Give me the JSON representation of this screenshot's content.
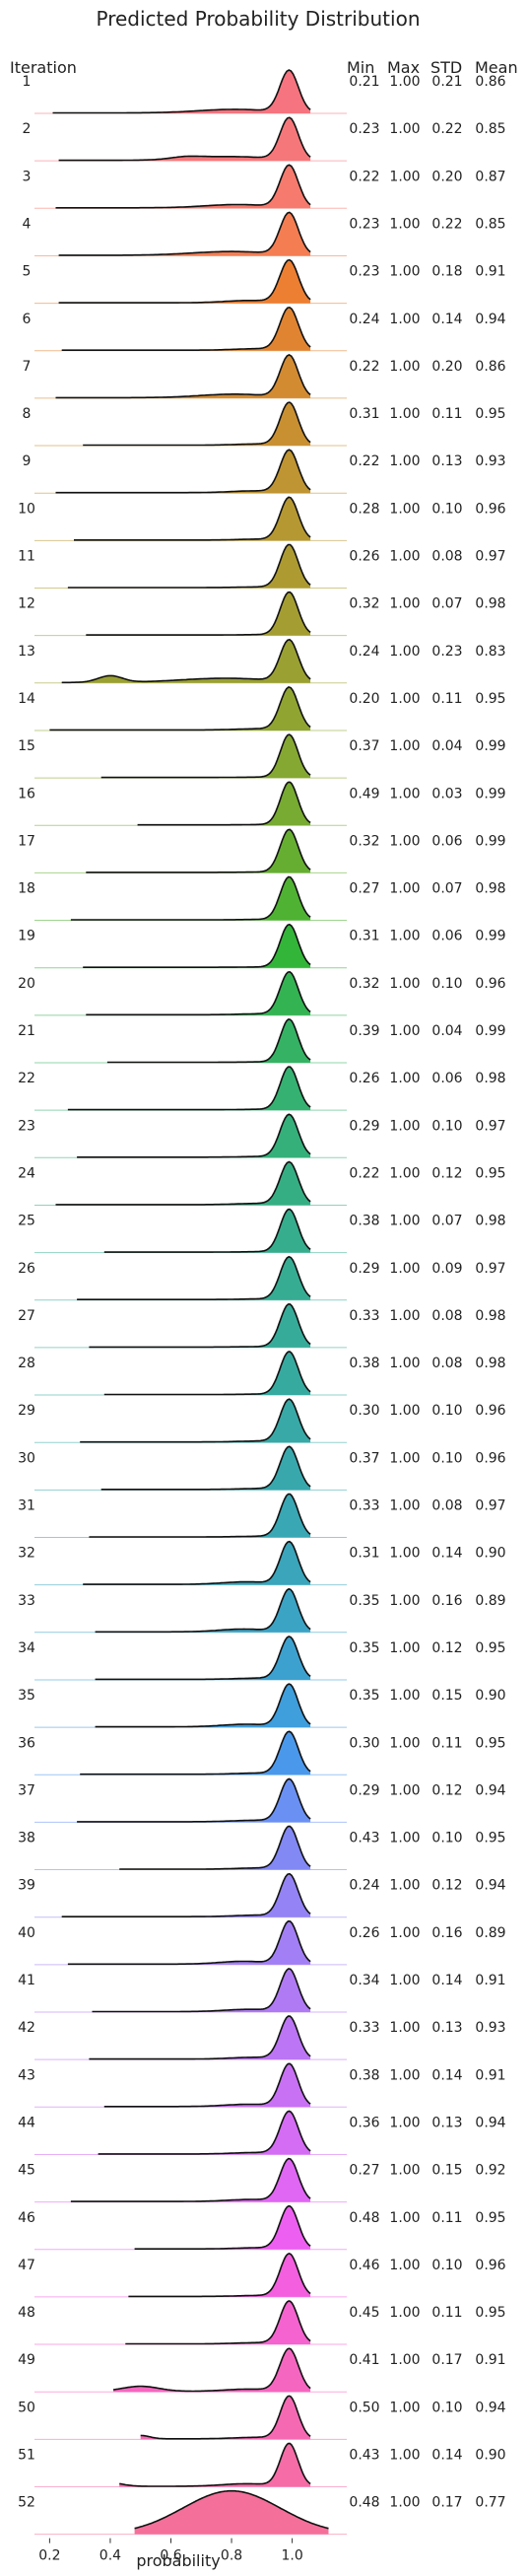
{
  "chart_data": {
    "type": "ridgeline",
    "title": "Predicted Probability Distribution",
    "xlabel": "probability",
    "row_header": "Iteration",
    "stat_headers": [
      "Min",
      "Max",
      "STD",
      "Mean"
    ],
    "x_ticks": [
      0.2,
      0.4,
      0.6,
      0.8,
      1.0
    ],
    "x_tick_labels": [
      "0.2",
      "0.4",
      "0.6",
      "0.8",
      "1.0"
    ],
    "xlim": [
      0.15,
      1.18
    ],
    "colormap": "hue cycle (red → orange → olive → green → teal → blue → purple → magenta → pink)",
    "rows": [
      {
        "iteration": "1",
        "min": "0.21",
        "max": "1.00",
        "std": "0.21",
        "mean": "0.86",
        "color": "#f6747f"
      },
      {
        "iteration": "2",
        "min": "0.23",
        "max": "1.00",
        "std": "0.22",
        "mean": "0.85",
        "color": "#f6777a"
      },
      {
        "iteration": "3",
        "min": "0.22",
        "max": "1.00",
        "std": "0.20",
        "mean": "0.87",
        "color": "#f67a6d"
      },
      {
        "iteration": "4",
        "min": "0.23",
        "max": "1.00",
        "std": "0.22",
        "mean": "0.85",
        "color": "#f57d52"
      },
      {
        "iteration": "5",
        "min": "0.23",
        "max": "1.00",
        "std": "0.18",
        "mean": "0.91",
        "color": "#ec7f32"
      },
      {
        "iteration": "6",
        "min": "0.24",
        "max": "1.00",
        "std": "0.14",
        "mean": "0.94",
        "color": "#e08432"
      },
      {
        "iteration": "7",
        "min": "0.22",
        "max": "1.00",
        "std": "0.20",
        "mean": "0.86",
        "color": "#d38b32"
      },
      {
        "iteration": "8",
        "min": "0.31",
        "max": "1.00",
        "std": "0.11",
        "mean": "0.95",
        "color": "#c99032"
      },
      {
        "iteration": "9",
        "min": "0.22",
        "max": "1.00",
        "std": "0.13",
        "mean": "0.93",
        "color": "#bf9432"
      },
      {
        "iteration": "10",
        "min": "0.28",
        "max": "1.00",
        "std": "0.10",
        "mean": "0.96",
        "color": "#b69832"
      },
      {
        "iteration": "11",
        "min": "0.26",
        "max": "1.00",
        "std": "0.08",
        "mean": "0.97",
        "color": "#ad9b32"
      },
      {
        "iteration": "12",
        "min": "0.32",
        "max": "1.00",
        "std": "0.07",
        "mean": "0.98",
        "color": "#a49e32"
      },
      {
        "iteration": "13",
        "min": "0.24",
        "max": "1.00",
        "std": "0.23",
        "mean": "0.83",
        "color": "#9aa132"
      },
      {
        "iteration": "14",
        "min": "0.20",
        "max": "1.00",
        "std": "0.11",
        "mean": "0.95",
        "color": "#90a432"
      },
      {
        "iteration": "15",
        "min": "0.37",
        "max": "1.00",
        "std": "0.04",
        "mean": "0.99",
        "color": "#85a832"
      },
      {
        "iteration": "16",
        "min": "0.49",
        "max": "1.00",
        "std": "0.03",
        "mean": "0.99",
        "color": "#77ab32"
      },
      {
        "iteration": "17",
        "min": "0.32",
        "max": "1.00",
        "std": "0.06",
        "mean": "0.99",
        "color": "#66ae32"
      },
      {
        "iteration": "18",
        "min": "0.27",
        "max": "1.00",
        "std": "0.07",
        "mean": "0.98",
        "color": "#4fb232"
      },
      {
        "iteration": "19",
        "min": "0.31",
        "max": "1.00",
        "std": "0.06",
        "mean": "0.99",
        "color": "#33b53a"
      },
      {
        "iteration": "20",
        "min": "0.32",
        "max": "1.00",
        "std": "0.10",
        "mean": "0.96",
        "color": "#34b353"
      },
      {
        "iteration": "21",
        "min": "0.39",
        "max": "1.00",
        "std": "0.04",
        "mean": "0.99",
        "color": "#35b264"
      },
      {
        "iteration": "22",
        "min": "0.26",
        "max": "1.00",
        "std": "0.06",
        "mean": "0.98",
        "color": "#35b171"
      },
      {
        "iteration": "23",
        "min": "0.29",
        "max": "1.00",
        "std": "0.10",
        "mean": "0.97",
        "color": "#35b07b"
      },
      {
        "iteration": "24",
        "min": "0.22",
        "max": "1.00",
        "std": "0.12",
        "mean": "0.95",
        "color": "#36ae84"
      },
      {
        "iteration": "25",
        "min": "0.38",
        "max": "1.00",
        "std": "0.07",
        "mean": "0.98",
        "color": "#36ad8c"
      },
      {
        "iteration": "26",
        "min": "0.29",
        "max": "1.00",
        "std": "0.09",
        "mean": "0.97",
        "color": "#36ac93"
      },
      {
        "iteration": "27",
        "min": "0.33",
        "max": "1.00",
        "std": "0.08",
        "mean": "0.98",
        "color": "#37ab99"
      },
      {
        "iteration": "28",
        "min": "0.38",
        "max": "1.00",
        "std": "0.08",
        "mean": "0.98",
        "color": "#37aaa0"
      },
      {
        "iteration": "29",
        "min": "0.30",
        "max": "1.00",
        "std": "0.10",
        "mean": "0.96",
        "color": "#38a9a6"
      },
      {
        "iteration": "30",
        "min": "0.37",
        "max": "1.00",
        "std": "0.10",
        "mean": "0.96",
        "color": "#38a8ad"
      },
      {
        "iteration": "31",
        "min": "0.33",
        "max": "1.00",
        "std": "0.08",
        "mean": "0.97",
        "color": "#39a7b4"
      },
      {
        "iteration": "32",
        "min": "0.31",
        "max": "1.00",
        "std": "0.14",
        "mean": "0.90",
        "color": "#3aa5bb"
      },
      {
        "iteration": "33",
        "min": "0.35",
        "max": "1.00",
        "std": "0.16",
        "mean": "0.89",
        "color": "#3ba3c4"
      },
      {
        "iteration": "34",
        "min": "0.35",
        "max": "1.00",
        "std": "0.12",
        "mean": "0.95",
        "color": "#3da1cf"
      },
      {
        "iteration": "35",
        "min": "0.35",
        "max": "1.00",
        "std": "0.15",
        "mean": "0.90",
        "color": "#3f9edc"
      },
      {
        "iteration": "36",
        "min": "0.30",
        "max": "1.00",
        "std": "0.11",
        "mean": "0.95",
        "color": "#4a98ec"
      },
      {
        "iteration": "37",
        "min": "0.29",
        "max": "1.00",
        "std": "0.12",
        "mean": "0.94",
        "color": "#6a90f4"
      },
      {
        "iteration": "38",
        "min": "0.43",
        "max": "1.00",
        "std": "0.10",
        "mean": "0.95",
        "color": "#8288f4"
      },
      {
        "iteration": "39",
        "min": "0.24",
        "max": "1.00",
        "std": "0.12",
        "mean": "0.94",
        "color": "#9483f4"
      },
      {
        "iteration": "40",
        "min": "0.26",
        "max": "1.00",
        "std": "0.16",
        "mean": "0.89",
        "color": "#a27ff4"
      },
      {
        "iteration": "41",
        "min": "0.34",
        "max": "1.00",
        "std": "0.14",
        "mean": "0.91",
        "color": "#b07af4"
      },
      {
        "iteration": "42",
        "min": "0.33",
        "max": "1.00",
        "std": "0.13",
        "mean": "0.93",
        "color": "#bc75f4"
      },
      {
        "iteration": "43",
        "min": "0.38",
        "max": "1.00",
        "std": "0.14",
        "mean": "0.91",
        "color": "#c871f4"
      },
      {
        "iteration": "44",
        "min": "0.36",
        "max": "1.00",
        "std": "0.13",
        "mean": "0.94",
        "color": "#d46cf4"
      },
      {
        "iteration": "45",
        "min": "0.27",
        "max": "1.00",
        "std": "0.15",
        "mean": "0.92",
        "color": "#e066f4"
      },
      {
        "iteration": "46",
        "min": "0.48",
        "max": "1.00",
        "std": "0.11",
        "mean": "0.95",
        "color": "#ed5ff0"
      },
      {
        "iteration": "47",
        "min": "0.46",
        "max": "1.00",
        "std": "0.10",
        "mean": "0.96",
        "color": "#f35fdf"
      },
      {
        "iteration": "48",
        "min": "0.45",
        "max": "1.00",
        "std": "0.11",
        "mean": "0.95",
        "color": "#f463cf"
      },
      {
        "iteration": "49",
        "min": "0.41",
        "max": "1.00",
        "std": "0.17",
        "mean": "0.91",
        "color": "#f566c0"
      },
      {
        "iteration": "50",
        "min": "0.50",
        "max": "1.00",
        "std": "0.10",
        "mean": "0.94",
        "color": "#f569b3"
      },
      {
        "iteration": "51",
        "min": "0.43",
        "max": "1.00",
        "std": "0.14",
        "mean": "0.90",
        "color": "#f56ca7"
      },
      {
        "iteration": "52",
        "min": "0.48",
        "max": "1.00",
        "std": "0.17",
        "mean": "0.77",
        "color": "#f56f9b"
      }
    ]
  }
}
